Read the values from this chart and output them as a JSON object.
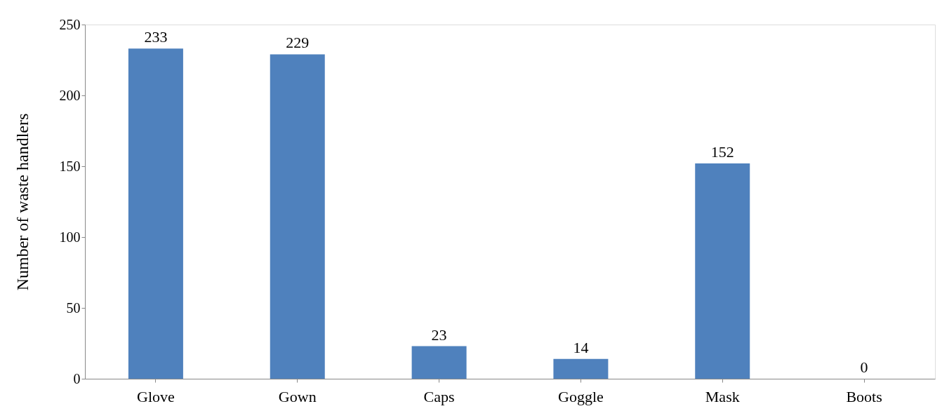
{
  "chart_data": {
    "type": "bar",
    "ylabel": "Number of waste handlers",
    "categories": [
      "Glove",
      "Gown",
      "Caps",
      "Goggle",
      "Mask",
      "Boots"
    ],
    "values": [
      233,
      229,
      23,
      14,
      152,
      0
    ],
    "color": "#4f81bd",
    "ylim": [
      0,
      250
    ],
    "yticks": [
      0,
      50,
      100,
      150,
      200,
      250
    ],
    "grid": false,
    "data_labels": true
  }
}
